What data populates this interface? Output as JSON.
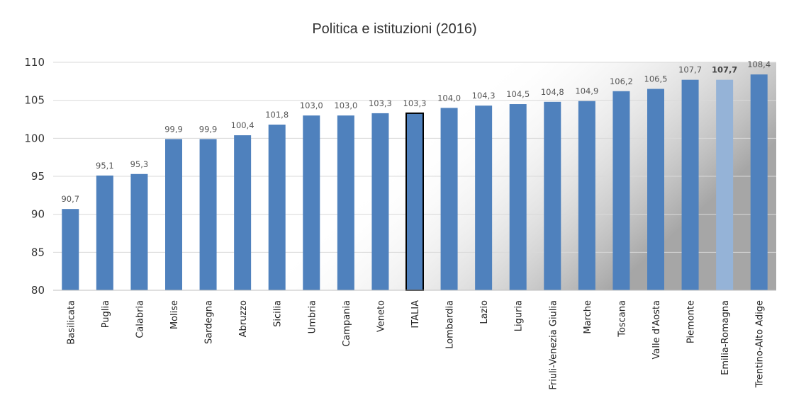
{
  "chart_data": {
    "type": "bar",
    "title": "Politica e istituzioni (2016)",
    "xlabel": "",
    "ylabel": "",
    "ylim": [
      80,
      110
    ],
    "yticks": [
      "80",
      "85",
      "90",
      "95",
      "100",
      "105",
      "110"
    ],
    "grid": true,
    "categories": [
      "Basilicata",
      "Puglia",
      "Calabria",
      "Molise",
      "Sardegna",
      "Abruzzo",
      "Sicilia",
      "Umbria",
      "Campania",
      "Veneto",
      "ITALIA",
      "Lombardia",
      "Lazio",
      "Liguria",
      "Friuli-Venezia Giulia",
      "Marche",
      "Toscana",
      "Valle d'Aosta",
      "Piemonte",
      "Emilia-Romagna",
      "Trentino-Alto Adige"
    ],
    "values": [
      90.7,
      95.1,
      95.3,
      99.9,
      99.9,
      100.4,
      101.8,
      103.0,
      103.0,
      103.3,
      103.3,
      104.0,
      104.3,
      104.5,
      104.8,
      104.9,
      106.2,
      106.5,
      107.7,
      107.7,
      108.4
    ],
    "value_labels": [
      "90,7",
      "95,1",
      "95,3",
      "99,9",
      "99,9",
      "100,4",
      "101,8",
      "103,0",
      "103,0",
      "103,3",
      "103,3",
      "104,0",
      "104,3",
      "104,5",
      "104,8",
      "104,9",
      "106,2",
      "106,5",
      "107,7",
      "107,7",
      "108,4"
    ],
    "highlighted": {
      "ITALIA": "outlined",
      "Emilia-Romagna": "light"
    },
    "colors": {
      "bar": "#4f81bd",
      "bar_light": "#95b3d7",
      "bar_outline": "#000000",
      "grid": "#d9d9d9",
      "background_gradient_end": "#a6a6a6"
    }
  }
}
